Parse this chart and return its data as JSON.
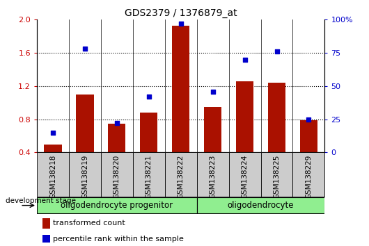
{
  "title": "GDS2379 / 1376879_at",
  "samples": [
    "GSM138218",
    "GSM138219",
    "GSM138220",
    "GSM138221",
    "GSM138222",
    "GSM138223",
    "GSM138224",
    "GSM138225",
    "GSM138229"
  ],
  "bar_values": [
    0.5,
    1.1,
    0.75,
    0.88,
    1.93,
    0.95,
    1.26,
    1.24,
    0.79
  ],
  "dot_values": [
    15,
    78,
    22,
    42,
    97,
    46,
    70,
    76,
    25
  ],
  "bar_color": "#AA1100",
  "dot_color": "#0000CC",
  "left_ylim": [
    0.4,
    2.0
  ],
  "right_ylim": [
    0,
    100
  ],
  "left_yticks": [
    0.4,
    0.8,
    1.2,
    1.6,
    2.0
  ],
  "right_yticks": [
    0,
    25,
    50,
    75,
    100
  ],
  "right_yticklabels": [
    "0",
    "25",
    "50",
    "75",
    "100%"
  ],
  "group1_label": "oligodendrocyte progenitor",
  "group1_count": 5,
  "group2_label": "oligodendrocyte",
  "group2_count": 4,
  "group_color": "#90EE90",
  "dev_stage_label": "development stage",
  "legend_bar_label": "transformed count",
  "legend_dot_label": "percentile rank within the sample",
  "bg_color": "#FFFFFF",
  "plot_bg_color": "#FFFFFF",
  "xtick_bg_color": "#CCCCCC",
  "left_tick_color": "#CC0000",
  "right_tick_color": "#0000CC"
}
